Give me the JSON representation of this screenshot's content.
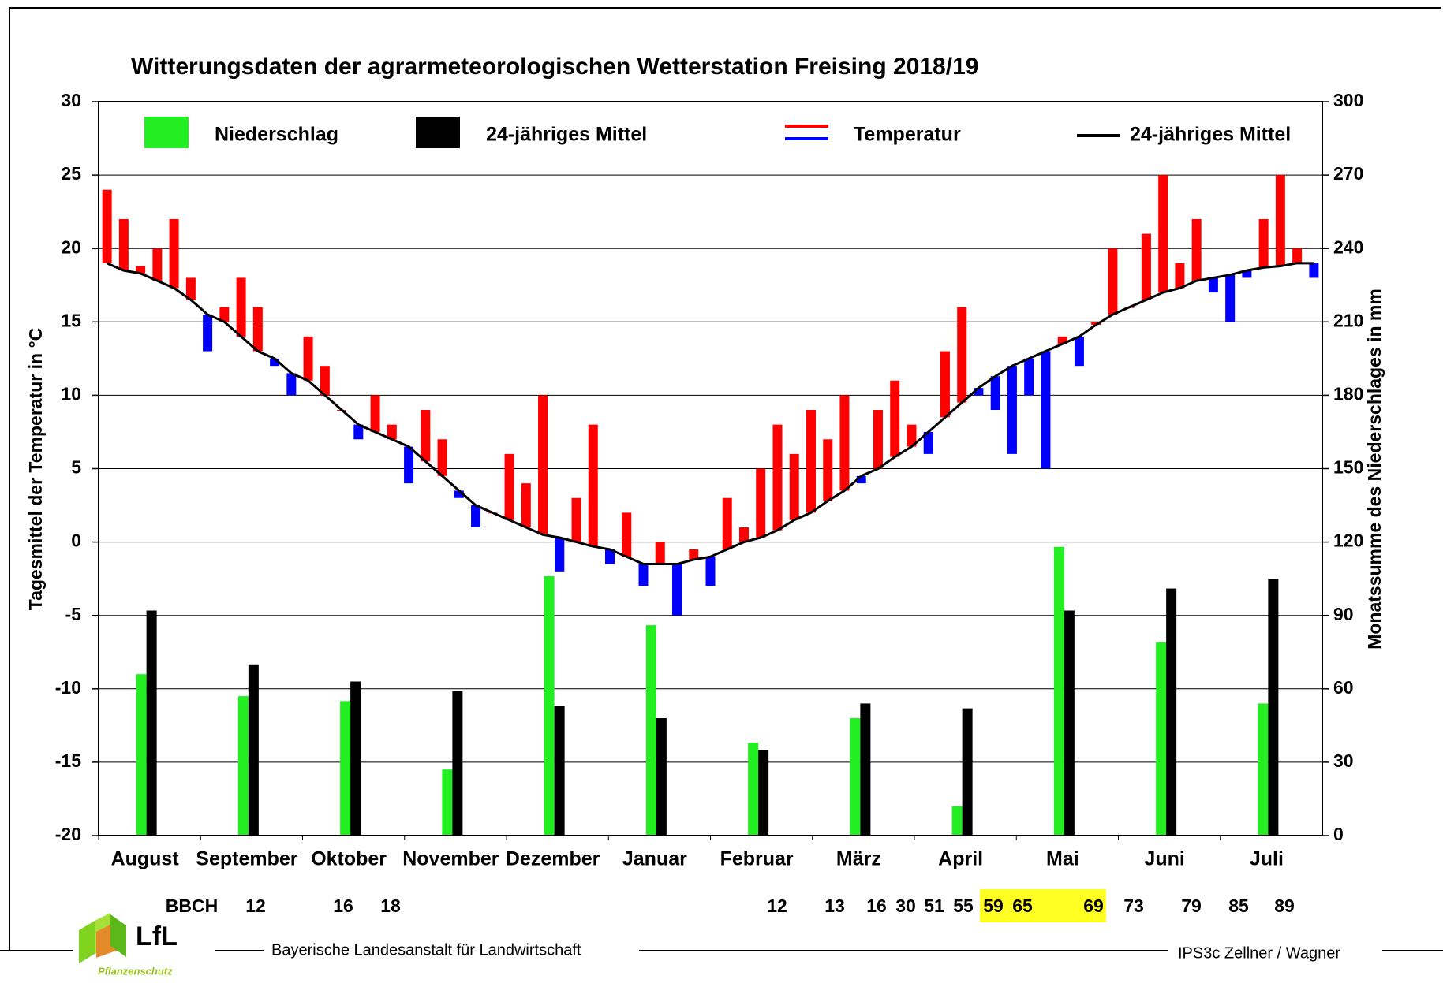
{
  "chart_data": {
    "type": "combo",
    "title": "Witterungsdaten der agrarmeteorologischen Wetterstation Freising 2018/19",
    "ylabel": "Tagesmittel der Temperatur in °C",
    "y2label": "Monatssumme des Niederschlages in mm",
    "categories": [
      "August",
      "September",
      "Oktober",
      "November",
      "Dezember",
      "Januar",
      "Februar",
      "März",
      "April",
      "Mai",
      "Juni",
      "Juli"
    ],
    "series": [
      {
        "name": "Niederschlag",
        "color": "#22ee22",
        "axis": "y2",
        "values": [
          66,
          57,
          55,
          27,
          106,
          86,
          38,
          48,
          12,
          118,
          79,
          54
        ]
      },
      {
        "name": "24-jähriges Mittel",
        "color": "#000000",
        "axis": "y2",
        "values": [
          92,
          70,
          63,
          59,
          53,
          48,
          35,
          54,
          52,
          92,
          101,
          105
        ]
      }
    ],
    "temperature": {
      "name": "Temperatur",
      "color_above": "#ff0000",
      "color_below": "#0000ff",
      "values": [
        24,
        22,
        18.8,
        20,
        22,
        18,
        13,
        16,
        18,
        16,
        12,
        10,
        14,
        12,
        9,
        7,
        10,
        8,
        4,
        9,
        7,
        3,
        1,
        2,
        6,
        4,
        10,
        -2,
        3,
        8,
        -1.5,
        2,
        -3,
        0,
        -5,
        -0.5,
        -3,
        3,
        1,
        5,
        8,
        6,
        9,
        7,
        10,
        4,
        9,
        11,
        8,
        6,
        13,
        16,
        10,
        9,
        6,
        10,
        5,
        14,
        12,
        15,
        20,
        16,
        21,
        25,
        19,
        22,
        17,
        15,
        18,
        22,
        25,
        20,
        18
      ]
    },
    "temperature_mean": {
      "name": "24-jähriges Mittel",
      "color": "#000000",
      "values": [
        19,
        18.5,
        18.3,
        17.8,
        17.3,
        16.5,
        15.5,
        15,
        14,
        13,
        12.5,
        11.5,
        11,
        10,
        9,
        8,
        7.5,
        7,
        6.5,
        5.5,
        4.5,
        3.5,
        2.5,
        2,
        1.5,
        1,
        0.5,
        0.3,
        0,
        -0.3,
        -0.5,
        -1,
        -1.5,
        -1.5,
        -1.5,
        -1.2,
        -1,
        -0.5,
        0,
        0.3,
        0.8,
        1.5,
        2,
        2.8,
        3.5,
        4.5,
        5,
        5.8,
        6.5,
        7.5,
        8.5,
        9.5,
        10.5,
        11.3,
        12,
        12.5,
        13,
        13.5,
        14,
        14.8,
        15.5,
        16,
        16.5,
        17,
        17.3,
        17.8,
        18,
        18.2,
        18.5,
        18.7,
        18.8,
        19,
        19
      ]
    },
    "ylim": [
      -20,
      30
    ],
    "yticks": [
      -20,
      -15,
      -10,
      -5,
      0,
      5,
      10,
      15,
      20,
      25,
      30
    ],
    "y2lim": [
      0,
      300
    ],
    "y2ticks": [
      0,
      30,
      60,
      90,
      120,
      150,
      180,
      210,
      240,
      270,
      300
    ],
    "grid": true,
    "bbch": {
      "label": "BBCH",
      "stages": [
        "12",
        "16",
        "18",
        "12",
        "13",
        "16",
        "30",
        "51",
        "55",
        "59",
        "65",
        "69",
        "73",
        "79",
        "85",
        "89"
      ]
    }
  },
  "footer": {
    "institution": "Bayerische Landesanstalt für Landwirtschaft",
    "credit": "IPS3c  Zellner / Wagner",
    "logo": "LfL",
    "logo_subtitle": "Pflanzenschutz"
  }
}
